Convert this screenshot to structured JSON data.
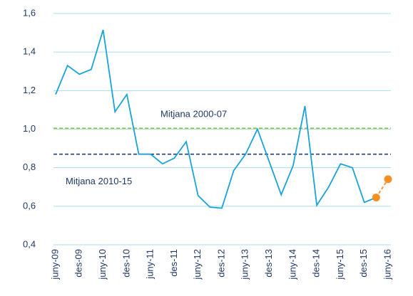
{
  "chart_data": {
    "type": "line",
    "categories": [
      "juny-09",
      null,
      "des-09",
      null,
      "juny-10",
      null,
      "des-10",
      null,
      "juny-11",
      null,
      "des-11",
      null,
      "juny-12",
      null,
      "des-12",
      null,
      "juny-13",
      null,
      "des-13",
      null,
      "juny-14",
      null,
      "des-14",
      null,
      "juny-15",
      null,
      "des-15",
      null,
      "juny-16"
    ],
    "series": [
      {
        "color": "#1aa3d9",
        "values": [
          1.18,
          1.33,
          1.285,
          1.31,
          1.515,
          1.09,
          1.18,
          0.87,
          0.87,
          0.82,
          0.85,
          0.935,
          0.655,
          0.595,
          0.59,
          0.785,
          0.87,
          1.0,
          0.83,
          0.66,
          0.81,
          1.12,
          0.605,
          0.7,
          0.82,
          0.8,
          0.62,
          0.645,
          null
        ]
      },
      {
        "color": "#f39222",
        "values": [
          null,
          null,
          null,
          null,
          null,
          null,
          null,
          null,
          null,
          null,
          null,
          null,
          null,
          null,
          null,
          null,
          null,
          null,
          null,
          null,
          null,
          null,
          null,
          null,
          null,
          null,
          null,
          0.645,
          0.74
        ]
      }
    ],
    "reference_lines": [
      {
        "label": "Mitjana 2000-07",
        "value": 1.005,
        "color": "#8cc63f"
      },
      {
        "label": "Mitjana 2010-15",
        "value": 0.87,
        "color": "#1f3a7a"
      }
    ],
    "ylim": [
      0.4,
      1.6
    ],
    "yticks": [
      {
        "value": 0.4,
        "label": "0,4"
      },
      {
        "value": 0.6,
        "label": "0,6"
      },
      {
        "value": 0.8,
        "label": "0,8"
      },
      {
        "value": 1.0,
        "label": "1,0"
      },
      {
        "value": 1.2,
        "label": "1,2"
      },
      {
        "value": 1.4,
        "label": "1,4"
      },
      {
        "value": 1.6,
        "label": "1,6"
      }
    ],
    "grid": true
  }
}
